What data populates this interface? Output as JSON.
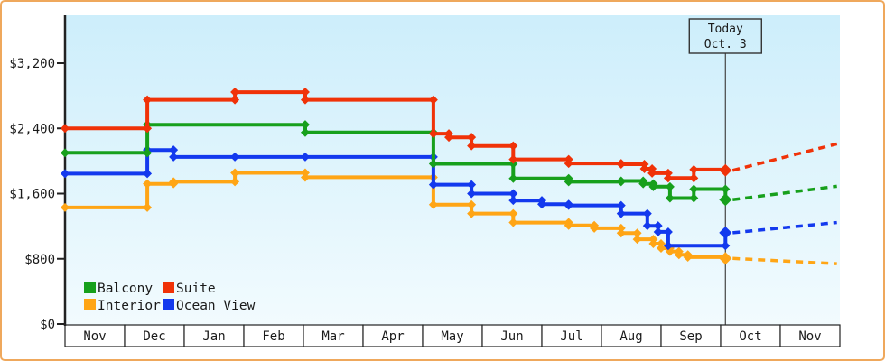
{
  "window": {
    "border_color": "#efa85c",
    "background": "#ffffff"
  },
  "today": {
    "line1": "Today",
    "line2": "Oct. 3",
    "month_position": 11.08
  },
  "y_axis": {
    "tick_labels": [
      "$0",
      "$800",
      "$1,600",
      "$2,400",
      "$3,200"
    ],
    "tick_values": [
      0,
      800,
      1600,
      2400,
      3200
    ]
  },
  "x_axis": {
    "months": [
      "Nov",
      "Dec",
      "Jan",
      "Feb",
      "Mar",
      "Apr",
      "May",
      "Jun",
      "Jul",
      "Aug",
      "Sep",
      "Oct",
      "Nov"
    ]
  },
  "legend": [
    {
      "label": "Balcony",
      "color": "#17a01c"
    },
    {
      "label": "Suite",
      "color": "#f03208"
    },
    {
      "label": "Interior",
      "color": "#ffa515"
    },
    {
      "label": "Ocean View",
      "color": "#1339ee"
    }
  ],
  "chart_data": {
    "type": "line",
    "subtype": "step-after",
    "title": "",
    "x_unit": "months, Nov through following Nov (month position 0-13)",
    "ylim": [
      0,
      3200
    ],
    "y_tick_values": [
      0,
      800,
      1600,
      2400,
      3200
    ],
    "grid": false,
    "legend_position": "bottom-left inside plot",
    "plot_bg_top": "#cdeefb",
    "plot_bg_bottom": "#f2fbfe",
    "annotation": {
      "label": "Today Oct. 3",
      "month_position": 11.08
    },
    "projection_note": "dashed lines right of Today are price forecasts",
    "series": [
      {
        "name": "Interior",
        "color": "#ffa515",
        "points": [
          [
            0,
            1430
          ],
          [
            1.38,
            1720
          ],
          [
            1.82,
            1745
          ],
          [
            2.85,
            1855
          ],
          [
            4.03,
            1800
          ],
          [
            6.18,
            1465
          ],
          [
            6.82,
            1355
          ],
          [
            7.52,
            1245
          ],
          [
            8.45,
            1210
          ],
          [
            8.88,
            1175
          ],
          [
            9.33,
            1115
          ],
          [
            9.6,
            1040
          ],
          [
            9.87,
            985
          ],
          [
            10.0,
            930
          ],
          [
            10.15,
            890
          ],
          [
            10.3,
            850
          ],
          [
            10.45,
            820
          ],
          [
            11.08,
            805
          ]
        ],
        "projection_end": 740
      },
      {
        "name": "Ocean View",
        "color": "#1339ee",
        "points": [
          [
            0,
            1845
          ],
          [
            1.38,
            2135
          ],
          [
            1.82,
            2050
          ],
          [
            2.85,
            2050
          ],
          [
            4.03,
            2050
          ],
          [
            6.18,
            1710
          ],
          [
            6.82,
            1600
          ],
          [
            7.52,
            1515
          ],
          [
            8.0,
            1470
          ],
          [
            8.45,
            1455
          ],
          [
            9.33,
            1355
          ],
          [
            9.77,
            1205
          ],
          [
            9.95,
            1130
          ],
          [
            10.12,
            960
          ],
          [
            11.08,
            1120
          ]
        ],
        "projection_end": 1245
      },
      {
        "name": "Balcony",
        "color": "#17a01c",
        "points": [
          [
            0,
            2100
          ],
          [
            1.38,
            2445
          ],
          [
            4.03,
            2350
          ],
          [
            6.18,
            1965
          ],
          [
            7.52,
            1785
          ],
          [
            8.45,
            1745
          ],
          [
            9.33,
            1755
          ],
          [
            9.7,
            1720
          ],
          [
            9.87,
            1685
          ],
          [
            10.15,
            1545
          ],
          [
            10.55,
            1655
          ],
          [
            11.08,
            1525
          ]
        ],
        "projection_end": 1690
      },
      {
        "name": "Suite",
        "color": "#f03208",
        "points": [
          [
            0,
            2400
          ],
          [
            1.38,
            2750
          ],
          [
            2.85,
            2845
          ],
          [
            4.03,
            2750
          ],
          [
            6.18,
            2335
          ],
          [
            6.44,
            2290
          ],
          [
            6.82,
            2185
          ],
          [
            7.52,
            2020
          ],
          [
            8.45,
            1970
          ],
          [
            9.33,
            1960
          ],
          [
            9.72,
            1905
          ],
          [
            9.85,
            1850
          ],
          [
            10.12,
            1790
          ],
          [
            10.55,
            1895
          ],
          [
            11.08,
            1885
          ]
        ],
        "projection_end": 2210
      }
    ]
  }
}
